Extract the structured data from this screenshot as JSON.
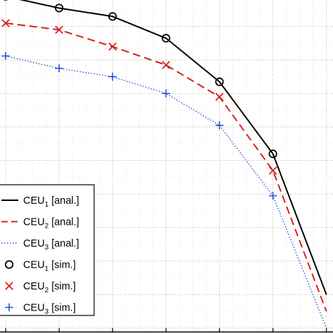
{
  "chart_data": {
    "type": "line",
    "title": "",
    "xlabel": "",
    "ylabel": "",
    "grid": true,
    "grid_style": "dotted",
    "x": [
      1,
      2,
      3,
      4,
      5,
      6,
      7
    ],
    "xlim": [
      0.5,
      7.15
    ],
    "ylim": [
      0,
      1
    ],
    "series": [
      {
        "id": "ceu1_anal",
        "label_main": "CEU",
        "label_sub": "1",
        "label_suffix": "[anal.]",
        "kind": "line",
        "color": "#000000",
        "dash": "solid",
        "values": [
          0.99,
          0.955,
          0.93,
          0.865,
          0.735,
          0.52,
          0.1
        ]
      },
      {
        "id": "ceu2_anal",
        "label_main": "CEU",
        "label_sub": "2",
        "label_suffix": "[anal.]",
        "kind": "line",
        "color": "#d62020",
        "dash": "dashed",
        "values": [
          0.91,
          0.89,
          0.84,
          0.785,
          0.69,
          0.47,
          0.05
        ]
      },
      {
        "id": "ceu3_anal",
        "label_main": "CEU",
        "label_sub": "3",
        "label_suffix": "[anal.]",
        "kind": "line",
        "color": "#2a50d6",
        "dash": "dotted",
        "values": [
          0.812,
          0.775,
          0.75,
          0.7,
          0.605,
          0.395,
          0.0
        ]
      },
      {
        "id": "ceu1_sim",
        "label_main": "CEU",
        "label_sub": "1",
        "label_suffix": "[sim.]",
        "kind": "marker",
        "marker": "circle",
        "color": "#000000",
        "values": [
          0.99,
          0.955,
          0.93,
          0.865,
          0.735,
          0.52,
          null
        ]
      },
      {
        "id": "ceu2_sim",
        "label_main": "CEU",
        "label_sub": "2",
        "label_suffix": "[sim.]",
        "kind": "marker",
        "marker": "x",
        "color": "#d62020",
        "values": [
          0.91,
          0.89,
          0.84,
          0.785,
          0.69,
          0.47,
          null
        ]
      },
      {
        "id": "ceu3_sim",
        "label_main": "CEU",
        "label_sub": "3",
        "label_suffix": "[sim.]",
        "kind": "marker",
        "marker": "plus",
        "color": "#2a50d6",
        "values": [
          0.812,
          0.775,
          0.75,
          0.7,
          0.605,
          0.395,
          null
        ]
      }
    ],
    "legend_position": "bottom-left"
  }
}
